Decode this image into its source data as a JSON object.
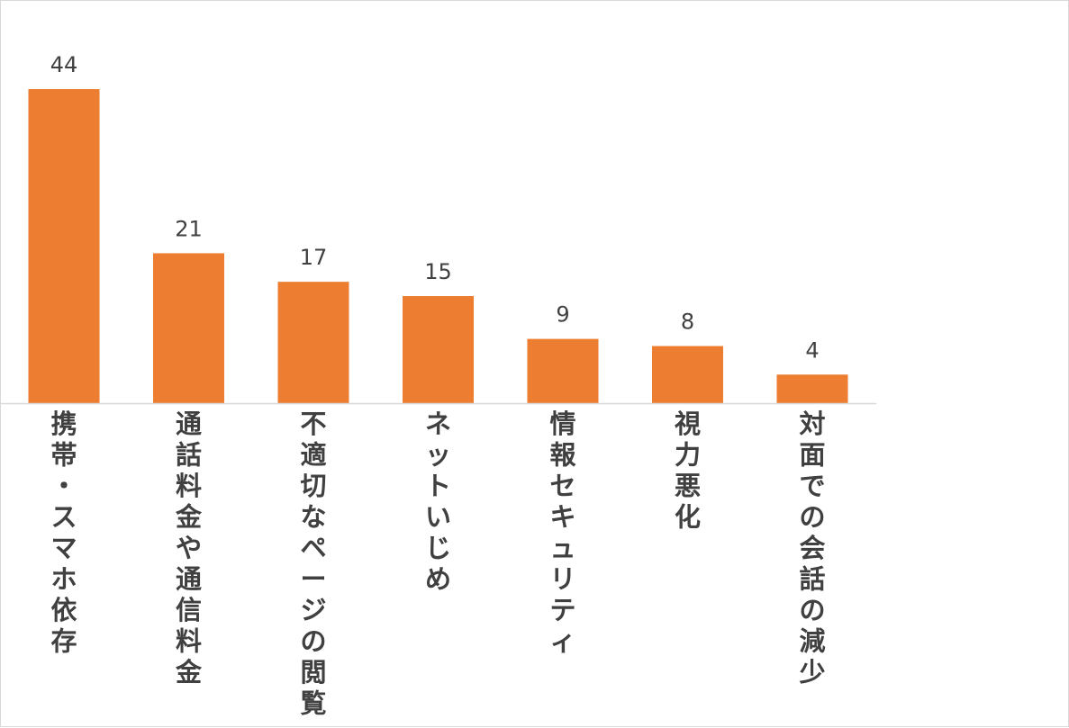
{
  "chart_data": {
    "type": "bar",
    "categories": [
      "携帯・スマホ依存",
      "通話料金や通信料金",
      "不適切なページの閲覧",
      "ネットいじめ",
      "情報セキュリティ",
      "視力悪化",
      "対面での会話の減少"
    ],
    "values": [
      44,
      21,
      17,
      15,
      9,
      8,
      4
    ],
    "ylim": [
      0,
      44
    ],
    "bar_color": "#ED7D31",
    "axis_color": "#d9d9d9",
    "label_color": "#404040",
    "grid": false,
    "legend": "none",
    "data_labels": true
  }
}
